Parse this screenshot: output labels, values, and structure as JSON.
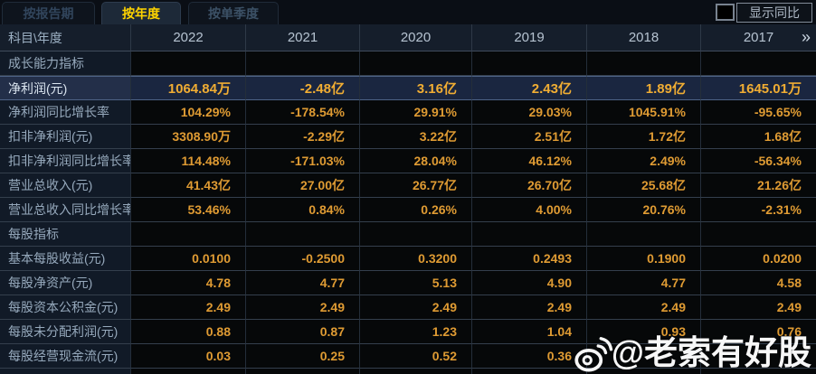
{
  "tabs": [
    {
      "label": "按报告期",
      "active": false
    },
    {
      "label": "按年度",
      "active": true
    },
    {
      "label": "按单季度",
      "active": false
    }
  ],
  "controls": {
    "show_yoy_label": "显示同比",
    "checkbox_checked": false
  },
  "table": {
    "corner_header": "科目\\年度",
    "year_columns": [
      "2022",
      "2021",
      "2020",
      "2019",
      "2018",
      "2017"
    ],
    "more_columns_icon": "»",
    "rows": [
      {
        "key": "section-growth",
        "type": "section",
        "label": "成长能力指标"
      },
      {
        "key": "net-profit",
        "type": "data",
        "highlight": true,
        "label": "净利润(元)",
        "values": [
          "1064.84万",
          "-2.48亿",
          "3.16亿",
          "2.43亿",
          "1.89亿",
          "1645.01万"
        ]
      },
      {
        "key": "net-profit-yoy",
        "type": "data",
        "highlight": false,
        "label": "净利润同比增长率",
        "values": [
          "104.29%",
          "-178.54%",
          "29.91%",
          "29.03%",
          "1045.91%",
          "-95.65%"
        ]
      },
      {
        "key": "non-gaap-net-profit",
        "type": "data",
        "highlight": false,
        "label": "扣非净利润(元)",
        "values": [
          "3308.90万",
          "-2.29亿",
          "3.22亿",
          "2.51亿",
          "1.72亿",
          "1.68亿"
        ]
      },
      {
        "key": "non-gaap-net-profit-yoy",
        "type": "data",
        "highlight": false,
        "label": "扣非净利润同比增长率",
        "values": [
          "114.48%",
          "-171.03%",
          "28.04%",
          "46.12%",
          "2.49%",
          "-56.34%"
        ]
      },
      {
        "key": "total-revenue",
        "type": "data",
        "highlight": false,
        "label": "营业总收入(元)",
        "values": [
          "41.43亿",
          "27.00亿",
          "26.77亿",
          "26.70亿",
          "25.68亿",
          "21.26亿"
        ]
      },
      {
        "key": "total-revenue-yoy",
        "type": "data",
        "highlight": false,
        "label": "营业总收入同比增长率",
        "values": [
          "53.46%",
          "0.84%",
          "0.26%",
          "4.00%",
          "20.76%",
          "-2.31%"
        ]
      },
      {
        "key": "section-per-share",
        "type": "section",
        "label": "每股指标"
      },
      {
        "key": "basic-eps",
        "type": "data",
        "highlight": false,
        "label": "基本每股收益(元)",
        "values": [
          "0.0100",
          "-0.2500",
          "0.3200",
          "0.2493",
          "0.1900",
          "0.0200"
        ]
      },
      {
        "key": "net-assets-per-share",
        "type": "data",
        "highlight": false,
        "label": "每股净资产(元)",
        "values": [
          "4.78",
          "4.77",
          "5.13",
          "4.90",
          "4.77",
          "4.58"
        ]
      },
      {
        "key": "capital-reserve-per-share",
        "type": "data",
        "highlight": false,
        "label": "每股资本公积金(元)",
        "values": [
          "2.49",
          "2.49",
          "2.49",
          "2.49",
          "2.49",
          "2.49"
        ]
      },
      {
        "key": "retained-profit-per-share",
        "type": "data",
        "highlight": false,
        "label": "每股未分配利润(元)",
        "values": [
          "0.88",
          "0.87",
          "1.23",
          "1.04",
          "0.93",
          "0.76"
        ]
      },
      {
        "key": "op-cashflow-per-share",
        "type": "data",
        "highlight": false,
        "label": "每股经营现金流(元)",
        "values": [
          "0.03",
          "0.25",
          "0.52",
          "0.36",
          "",
          ""
        ]
      }
    ]
  },
  "watermark": {
    "text": "@老索有好股",
    "icon": "weibo-icon"
  },
  "colors": {
    "active_tab_text": "#ffd400",
    "value_text": "#df9b33",
    "highlight_row_bg": "#1a2640",
    "label_col_bg": "#111a27",
    "header_bg": "#151e2b"
  }
}
